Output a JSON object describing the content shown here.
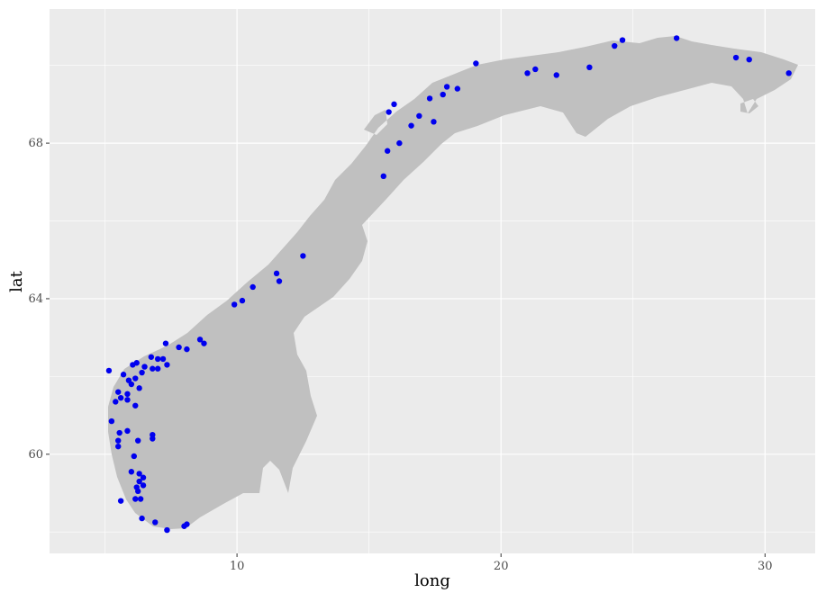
{
  "chart_data": {
    "type": "scatter",
    "xlabel": "long",
    "ylabel": "lat",
    "xlim": [
      2.9,
      31.9
    ],
    "ylim": [
      57.45,
      71.45
    ],
    "x_ticks": [
      10,
      20,
      30
    ],
    "y_ticks": [
      60,
      64,
      68
    ],
    "x_tick_labels": [
      "10",
      "20",
      "30"
    ],
    "y_tick_labels": [
      "60",
      "64",
      "68"
    ],
    "grid": true,
    "legend": "none",
    "colors": {
      "panel": "#ebebeb",
      "grid": "#ffffff",
      "land": "#c0c0c0",
      "points": "#0000ee"
    },
    "series": [
      {
        "values": [
          {
            "x": 5.15,
            "y": 62.15
          },
          {
            "x": 5.7,
            "y": 62.05
          },
          {
            "x": 6.05,
            "y": 62.3
          },
          {
            "x": 6.2,
            "y": 62.35
          },
          {
            "x": 6.5,
            "y": 62.25
          },
          {
            "x": 6.75,
            "y": 62.5
          },
          {
            "x": 7.0,
            "y": 62.45
          },
          {
            "x": 7.2,
            "y": 62.45
          },
          {
            "x": 7.3,
            "y": 62.85
          },
          {
            "x": 7.8,
            "y": 62.75
          },
          {
            "x": 8.1,
            "y": 62.7
          },
          {
            "x": 8.6,
            "y": 62.95
          },
          {
            "x": 8.75,
            "y": 62.85
          },
          {
            "x": 5.5,
            "y": 61.6
          },
          {
            "x": 5.85,
            "y": 61.55
          },
          {
            "x": 5.9,
            "y": 61.9
          },
          {
            "x": 6.0,
            "y": 61.8
          },
          {
            "x": 6.15,
            "y": 61.95
          },
          {
            "x": 6.4,
            "y": 62.1
          },
          {
            "x": 6.8,
            "y": 62.2
          },
          {
            "x": 7.0,
            "y": 62.2
          },
          {
            "x": 7.35,
            "y": 62.3
          },
          {
            "x": 5.4,
            "y": 61.35
          },
          {
            "x": 5.6,
            "y": 61.45
          },
          {
            "x": 5.85,
            "y": 61.4
          },
          {
            "x": 6.15,
            "y": 61.25
          },
          {
            "x": 6.3,
            "y": 61.7
          },
          {
            "x": 5.25,
            "y": 60.85
          },
          {
            "x": 5.55,
            "y": 60.55
          },
          {
            "x": 5.85,
            "y": 60.6
          },
          {
            "x": 5.5,
            "y": 60.35
          },
          {
            "x": 6.25,
            "y": 60.35
          },
          {
            "x": 5.5,
            "y": 60.2
          },
          {
            "x": 6.8,
            "y": 60.5
          },
          {
            "x": 6.8,
            "y": 60.4
          },
          {
            "x": 6.1,
            "y": 59.95
          },
          {
            "x": 6.0,
            "y": 59.55
          },
          {
            "x": 6.3,
            "y": 59.5
          },
          {
            "x": 6.45,
            "y": 59.4
          },
          {
            "x": 6.3,
            "y": 59.3
          },
          {
            "x": 6.45,
            "y": 59.2
          },
          {
            "x": 6.2,
            "y": 59.15
          },
          {
            "x": 6.25,
            "y": 59.05
          },
          {
            "x": 6.15,
            "y": 58.85
          },
          {
            "x": 6.35,
            "y": 58.85
          },
          {
            "x": 5.6,
            "y": 58.8
          },
          {
            "x": 6.4,
            "y": 58.35
          },
          {
            "x": 6.9,
            "y": 58.25
          },
          {
            "x": 7.35,
            "y": 58.05
          },
          {
            "x": 8.0,
            "y": 58.15
          },
          {
            "x": 8.1,
            "y": 58.2
          },
          {
            "x": 9.9,
            "y": 63.85
          },
          {
            "x": 10.2,
            "y": 63.95
          },
          {
            "x": 10.6,
            "y": 64.3
          },
          {
            "x": 11.5,
            "y": 64.65
          },
          {
            "x": 11.6,
            "y": 64.45
          },
          {
            "x": 12.5,
            "y": 65.1
          },
          {
            "x": 15.55,
            "y": 67.15
          },
          {
            "x": 15.7,
            "y": 67.8
          },
          {
            "x": 16.15,
            "y": 68.0
          },
          {
            "x": 15.75,
            "y": 68.8
          },
          {
            "x": 15.95,
            "y": 69.0
          },
          {
            "x": 16.6,
            "y": 68.45
          },
          {
            "x": 16.9,
            "y": 68.7
          },
          {
            "x": 17.45,
            "y": 68.55
          },
          {
            "x": 17.3,
            "y": 69.15
          },
          {
            "x": 17.8,
            "y": 69.25
          },
          {
            "x": 17.95,
            "y": 69.45
          },
          {
            "x": 18.35,
            "y": 69.4
          },
          {
            "x": 19.05,
            "y": 70.05
          },
          {
            "x": 21.0,
            "y": 69.8
          },
          {
            "x": 21.3,
            "y": 69.9
          },
          {
            "x": 22.1,
            "y": 69.75
          },
          {
            "x": 23.35,
            "y": 69.95
          },
          {
            "x": 24.3,
            "y": 70.5
          },
          {
            "x": 24.6,
            "y": 70.65
          },
          {
            "x": 26.65,
            "y": 70.7
          },
          {
            "x": 28.9,
            "y": 70.2
          },
          {
            "x": 29.4,
            "y": 70.15
          },
          {
            "x": 30.9,
            "y": 69.8
          }
        ]
      }
    ]
  }
}
